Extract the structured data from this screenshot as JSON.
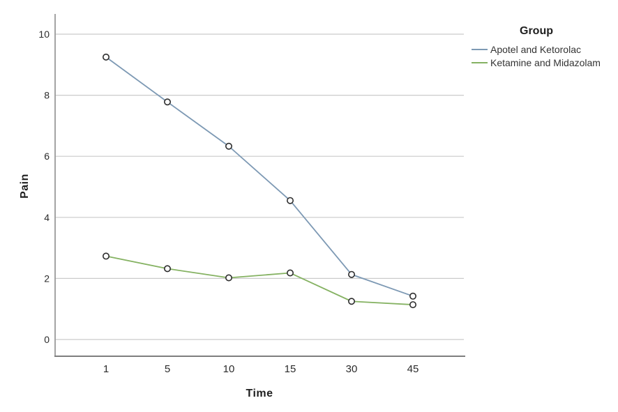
{
  "chart_data": {
    "type": "line",
    "title": "",
    "xlabel": "Time",
    "ylabel": "Pain",
    "categories": [
      "1",
      "5",
      "10",
      "15",
      "30",
      "45"
    ],
    "yticks": [
      0,
      2,
      4,
      6,
      8,
      10
    ],
    "ylim": [
      -0.55,
      10.65
    ],
    "grid": "horizontal",
    "legend_title": "Group",
    "legend_position": "top-right-outside",
    "series": [
      {
        "name": "Apotel and Ketorolac",
        "color": "#7d99b4",
        "values": [
          9.25,
          7.78,
          6.33,
          4.55,
          2.13,
          1.42
        ]
      },
      {
        "name": "Ketamine and Midazolam",
        "color": "#85b262",
        "values": [
          2.73,
          2.32,
          2.02,
          2.18,
          1.25,
          1.14
        ]
      }
    ],
    "marker": {
      "shape": "circle",
      "fill": "#fdfdfe",
      "stroke": "#2d2d2d"
    }
  },
  "colors": {
    "gridline": "#cacaca",
    "y_axis": "#9a9a9a",
    "x_axis": "#7e7e7e",
    "tick_text": "#2b2b2b",
    "background": "#ffffff"
  }
}
